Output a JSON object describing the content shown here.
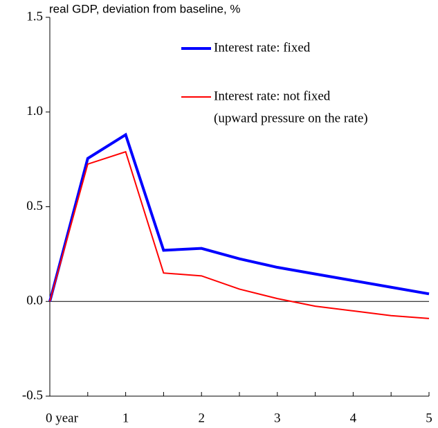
{
  "chart_data": {
    "type": "line",
    "y_axis_label": "real GDP, deviation  from baseline,  %",
    "x": [
      0,
      0.5,
      1,
      1.5,
      2,
      2.5,
      3,
      3.5,
      4,
      4.5,
      5
    ],
    "series": [
      {
        "name": "Interest rate: fixed",
        "color": "#0000ff",
        "width": 4,
        "values": [
          0,
          0.755,
          0.88,
          0.27,
          0.28,
          0.225,
          0.18,
          0.145,
          0.11,
          0.075,
          0.04
        ]
      },
      {
        "name": "Interest rate: not fixed",
        "note": "(upward pressure on the rate)",
        "color": "#ff0000",
        "width": 2,
        "values": [
          0,
          0.725,
          0.79,
          0.15,
          0.135,
          0.065,
          0.015,
          -0.025,
          -0.05,
          -0.075,
          -0.09
        ]
      }
    ],
    "xlim": [
      0,
      5
    ],
    "xticks": [
      {
        "value": 0,
        "label": "0 year"
      },
      1,
      2,
      3,
      4,
      5
    ],
    "xminorticks": [
      0.5,
      1.5,
      2.5,
      3.5,
      4.5
    ],
    "ylim": [
      -0.5,
      1.5
    ],
    "yticks": [
      -0.5,
      {
        "value": 0,
        "label": "0.0"
      },
      0.5,
      {
        "value": 1,
        "label": "1.0"
      },
      1.5
    ]
  }
}
